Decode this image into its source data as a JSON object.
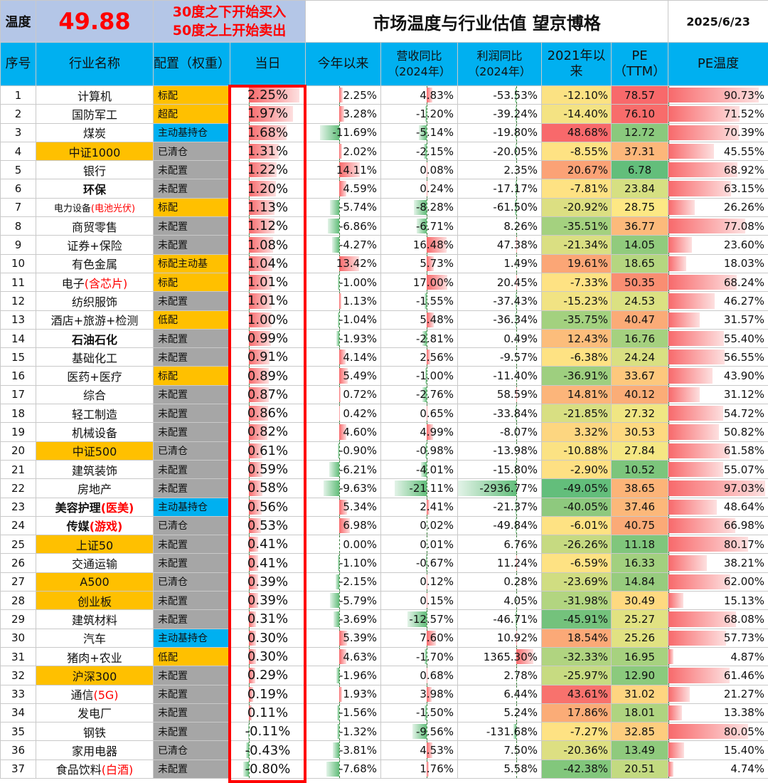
{
  "header": {
    "temp_label": "温度",
    "temp_value": "49.88",
    "rule_line1": "30度之下开始买入",
    "rule_line2": "50度之上开始卖出",
    "title": "市场温度与行业估值 望京博格",
    "date": "2025/6/23"
  },
  "columns": [
    "序号",
    "行业名称",
    "配置（权重）",
    "当日",
    "今年以来",
    "营收同比（2024年）",
    "利润同比（2024年）",
    "2021年以来",
    "PE（TTM）",
    "PE温度"
  ],
  "colors": {
    "gold": "#ffc000",
    "blue": "#00b0f0",
    "gray": "#a6a6a6",
    "bar_pos": "#f8696b",
    "bar_neg": "#63be7b",
    "frame": "#ff0000"
  },
  "rows": [
    {
      "idx": "1",
      "name": "计算机",
      "name_suffix": "",
      "gold": false,
      "bold": false,
      "alloc": "标配",
      "alloc_color": "gold",
      "today": 2.25,
      "ytd": 2.25,
      "rev": 4.83,
      "profit": -53.53,
      "since2021": -12.1,
      "since_color": "#fbe283",
      "pe": "78.57",
      "pe_color": "#f8696b",
      "pe_temp": 90.73
    },
    {
      "idx": "2",
      "name": "国防军工",
      "name_suffix": "",
      "gold": false,
      "bold": false,
      "alloc": "超配",
      "alloc_color": "gold",
      "today": 1.97,
      "ytd": 3.28,
      "rev": -1.2,
      "profit": -39.24,
      "since2021": -14.4,
      "since_color": "#f4e383",
      "pe": "76.10",
      "pe_color": "#f86c6b",
      "pe_temp": 71.52
    },
    {
      "idx": "3",
      "name": "煤炭",
      "name_suffix": "",
      "gold": false,
      "bold": false,
      "alloc": "主动基持仓",
      "alloc_color": "blue",
      "today": 1.68,
      "ytd": -11.69,
      "rev": -5.14,
      "profit": -19.8,
      "since2021": 48.68,
      "since_color": "#f8696b",
      "pe": "12.72",
      "pe_color": "#8ac97d",
      "pe_temp": 70.39
    },
    {
      "idx": "4",
      "name": "中证1000",
      "name_suffix": "",
      "gold": true,
      "bold": false,
      "alloc": "已清仓",
      "alloc_color": "gray",
      "today": 1.31,
      "ytd": 2.02,
      "rev": -2.15,
      "profit": -20.05,
      "since2021": -8.55,
      "since_color": "#fee283",
      "pe": "37.31",
      "pe_color": "#fcb77a",
      "pe_temp": 45.55
    },
    {
      "idx": "5",
      "name": "银行",
      "name_suffix": "",
      "gold": false,
      "bold": false,
      "alloc": "未配置",
      "alloc_color": "gray",
      "today": 1.22,
      "ytd": 14.11,
      "rev": 0.08,
      "profit": 2.35,
      "since2021": 20.67,
      "since_color": "#fba276",
      "pe": "6.78",
      "pe_color": "#63be7b",
      "pe_temp": 68.92
    },
    {
      "idx": "6",
      "name": "环保",
      "name_suffix": "",
      "gold": false,
      "bold": true,
      "alloc": "未配置",
      "alloc_color": "gray",
      "today": 1.2,
      "ytd": 4.59,
      "rev": 0.24,
      "profit": -17.17,
      "since2021": -7.81,
      "since_color": "#fee283",
      "pe": "23.84",
      "pe_color": "#d6e082",
      "pe_temp": 63.15
    },
    {
      "idx": "7",
      "name": "电力设备",
      "name_suffix": "(电池光伏)",
      "gold": false,
      "bold": false,
      "alloc": "标配",
      "alloc_color": "gold",
      "today": 1.13,
      "ytd": -5.74,
      "rev": -8.28,
      "profit": -61.5,
      "since2021": -20.92,
      "since_color": "#dcdf82",
      "pe": "28.75",
      "pe_color": "#fde884",
      "pe_temp": 26.26
    },
    {
      "idx": "8",
      "name": "商贸零售",
      "name_suffix": "",
      "gold": false,
      "bold": false,
      "alloc": "未配置",
      "alloc_color": "gray",
      "today": 1.12,
      "ytd": -6.86,
      "rev": -6.71,
      "profit": 8.26,
      "since2021": -35.51,
      "since_color": "#a4d17f",
      "pe": "36.77",
      "pe_color": "#fcba7b",
      "pe_temp": 77.08
    },
    {
      "idx": "9",
      "name": "证券+保险",
      "name_suffix": "",
      "gold": false,
      "bold": false,
      "alloc": "未配置",
      "alloc_color": "gray",
      "today": 1.08,
      "ytd": -4.27,
      "rev": 16.48,
      "profit": 47.38,
      "since2021": -21.34,
      "since_color": "#dadf82",
      "pe": "14.05",
      "pe_color": "#91cb7d",
      "pe_temp": 23.6
    },
    {
      "idx": "10",
      "name": "有色金属",
      "name_suffix": "",
      "gold": false,
      "bold": false,
      "alloc": "标配主动基",
      "alloc_color": "gold",
      "today": 1.04,
      "ytd": 13.42,
      "rev": 5.73,
      "profit": 1.49,
      "since2021": 19.61,
      "since_color": "#fba676",
      "pe": "18.65",
      "pe_color": "#b5d680",
      "pe_temp": 18.03
    },
    {
      "idx": "11",
      "name": "电子",
      "name_suffix": "(含芯片)",
      "gold": false,
      "bold": false,
      "alloc": "标配",
      "alloc_color": "gold",
      "today": 1.01,
      "ytd": -1.0,
      "rev": 17.0,
      "profit": 20.45,
      "since2021": -7.33,
      "since_color": "#fee283",
      "pe": "50.35",
      "pe_color": "#f98e72",
      "pe_temp": 68.24
    },
    {
      "idx": "12",
      "name": "纺织服饰",
      "name_suffix": "",
      "gold": false,
      "bold": false,
      "alloc": "未配置",
      "alloc_color": "gray",
      "today": 1.01,
      "ytd": 1.13,
      "rev": -1.55,
      "profit": -37.43,
      "since2021": -15.23,
      "since_color": "#f1e383",
      "pe": "24.53",
      "pe_color": "#dbe182",
      "pe_temp": 46.27
    },
    {
      "idx": "13",
      "name": "酒店+旅游+检测",
      "name_suffix": "",
      "gold": false,
      "bold": false,
      "alloc": "低配",
      "alloc_color": "gold",
      "today": 1.0,
      "ytd": -1.04,
      "rev": 5.48,
      "profit": -36.34,
      "since2021": -35.75,
      "since_color": "#a3d17f",
      "pe": "40.47",
      "pe_color": "#fbab77",
      "pe_temp": 31.57
    },
    {
      "idx": "14",
      "name": "石油石化",
      "name_suffix": "",
      "gold": false,
      "bold": true,
      "alloc": "未配置",
      "alloc_color": "gray",
      "today": 0.99,
      "ytd": -1.93,
      "rev": -2.81,
      "profit": 0.49,
      "since2021": 12.43,
      "since_color": "#fcbd7b",
      "pe": "16.76",
      "pe_color": "#a5d17f",
      "pe_temp": 55.4
    },
    {
      "idx": "15",
      "name": "基础化工",
      "name_suffix": "",
      "gold": false,
      "bold": false,
      "alloc": "未配置",
      "alloc_color": "gray",
      "today": 0.91,
      "ytd": 4.14,
      "rev": 2.56,
      "profit": -9.57,
      "since2021": -6.38,
      "since_color": "#fee283",
      "pe": "24.24",
      "pe_color": "#d9e082",
      "pe_temp": 56.55
    },
    {
      "idx": "16",
      "name": "医药+医疗",
      "name_suffix": "",
      "gold": false,
      "bold": false,
      "alloc": "标配",
      "alloc_color": "gold",
      "today": 0.89,
      "ytd": 5.49,
      "rev": -1.0,
      "profit": -11.4,
      "since2021": -36.91,
      "since_color": "#9ecf7f",
      "pe": "33.67",
      "pe_color": "#fdc87d",
      "pe_temp": 43.9
    },
    {
      "idx": "17",
      "name": "综合",
      "name_suffix": "",
      "gold": false,
      "bold": false,
      "alloc": "未配置",
      "alloc_color": "gray",
      "today": 0.87,
      "ytd": 0.72,
      "rev": -2.76,
      "profit": 58.59,
      "since2021": 14.81,
      "since_color": "#fcb57a",
      "pe": "40.12",
      "pe_color": "#fbad77",
      "pe_temp": 31.12
    },
    {
      "idx": "18",
      "name": "轻工制造",
      "name_suffix": "",
      "gold": false,
      "bold": false,
      "alloc": "未配置",
      "alloc_color": "gray",
      "today": 0.86,
      "ytd": 0.42,
      "rev": 0.65,
      "profit": -33.84,
      "since2021": -21.85,
      "since_color": "#d8df82",
      "pe": "27.32",
      "pe_color": "#f0e683",
      "pe_temp": 54.72
    },
    {
      "idx": "19",
      "name": "机械设备",
      "name_suffix": "",
      "gold": false,
      "bold": false,
      "alloc": "未配置",
      "alloc_color": "gray",
      "today": 0.82,
      "ytd": 4.6,
      "rev": 4.99,
      "profit": -8.07,
      "since2021": 3.32,
      "since_color": "#fdd680",
      "pe": "30.53",
      "pe_color": "#fed980",
      "pe_temp": 50.82
    },
    {
      "idx": "20",
      "name": "中证500",
      "name_suffix": "",
      "gold": true,
      "bold": false,
      "alloc": "已清仓",
      "alloc_color": "gray",
      "today": 0.61,
      "ytd": -0.9,
      "rev": -0.98,
      "profit": -13.98,
      "since2021": -10.88,
      "since_color": "#fbe283",
      "pe": "27.84",
      "pe_color": "#f5e783",
      "pe_temp": 61.58
    },
    {
      "idx": "21",
      "name": "建筑装饰",
      "name_suffix": "",
      "gold": false,
      "bold": false,
      "alloc": "未配置",
      "alloc_color": "gray",
      "today": 0.59,
      "ytd": -6.21,
      "rev": -4.01,
      "profit": -15.8,
      "since2021": -2.9,
      "since_color": "#fee083",
      "pe": "10.52",
      "pe_color": "#7cc57c",
      "pe_temp": 55.07
    },
    {
      "idx": "22",
      "name": "房地产",
      "name_suffix": "",
      "gold": false,
      "bold": false,
      "alloc": "未配置",
      "alloc_color": "gray",
      "today": 0.58,
      "ytd": -9.63,
      "rev": -21.11,
      "profit": -2936.77,
      "since2021": -49.05,
      "since_color": "#63be7b",
      "pe": "38.65",
      "pe_color": "#fcb478",
      "pe_temp": 97.03
    },
    {
      "idx": "23",
      "name": "美容护理",
      "name_suffix": "(医美)",
      "gold": false,
      "bold": true,
      "alloc": "主动基持仓",
      "alloc_color": "blue",
      "today": 0.56,
      "ytd": 5.34,
      "rev": 2.41,
      "profit": -21.37,
      "since2021": -40.05,
      "since_color": "#8ec97e",
      "pe": "37.46",
      "pe_color": "#fcb87a",
      "pe_temp": 48.64
    },
    {
      "idx": "24",
      "name": "传媒",
      "name_suffix": "(游戏)",
      "gold": false,
      "bold": true,
      "alloc": "已清仓",
      "alloc_color": "gray",
      "today": 0.53,
      "ytd": 6.98,
      "rev": 0.02,
      "profit": -49.84,
      "since2021": -6.01,
      "since_color": "#fee283",
      "pe": "40.75",
      "pe_color": "#fbaa77",
      "pe_temp": 66.98
    },
    {
      "idx": "25",
      "name": "上证50",
      "name_suffix": "",
      "gold": true,
      "bold": false,
      "alloc": "未配置",
      "alloc_color": "gray",
      "today": 0.41,
      "ytd": 0.0,
      "rev": 0.01,
      "profit": 6.76,
      "since2021": -26.26,
      "since_color": "#c6da81",
      "pe": "11.18",
      "pe_color": "#80c67c",
      "pe_temp": 80.17
    },
    {
      "idx": "26",
      "name": "交通运输",
      "name_suffix": "",
      "gold": false,
      "bold": false,
      "alloc": "未配置",
      "alloc_color": "gray",
      "today": 0.41,
      "ytd": -1.1,
      "rev": -0.67,
      "profit": 11.24,
      "since2021": -6.59,
      "since_color": "#fee283",
      "pe": "16.33",
      "pe_color": "#a2d07f",
      "pe_temp": 38.21
    },
    {
      "idx": "27",
      "name": "A500",
      "name_suffix": "",
      "gold": true,
      "bold": false,
      "alloc": "已清仓",
      "alloc_color": "gray",
      "today": 0.39,
      "ytd": -2.15,
      "rev": 0.12,
      "profit": 0.28,
      "since2021": -23.69,
      "since_color": "#d0dd81",
      "pe": "14.84",
      "pe_color": "#97cc7e",
      "pe_temp": 62.0
    },
    {
      "idx": "28",
      "name": "创业板",
      "name_suffix": "",
      "gold": true,
      "bold": false,
      "alloc": "未配置",
      "alloc_color": "gray",
      "today": 0.39,
      "ytd": -5.79,
      "rev": 0.15,
      "profit": 4.05,
      "since2021": -31.98,
      "since_color": "#b2d580",
      "pe": "30.49",
      "pe_color": "#fed980",
      "pe_temp": 15.13
    },
    {
      "idx": "29",
      "name": "建筑材料",
      "name_suffix": "",
      "gold": false,
      "bold": false,
      "alloc": "未配置",
      "alloc_color": "gray",
      "today": 0.31,
      "ytd": -3.69,
      "rev": -12.57,
      "profit": -46.71,
      "since2021": -45.91,
      "since_color": "#74c27c",
      "pe": "25.27",
      "pe_color": "#e1e282",
      "pe_temp": 68.08
    },
    {
      "idx": "30",
      "name": "汽车",
      "name_suffix": "",
      "gold": false,
      "bold": false,
      "alloc": "主动基持仓",
      "alloc_color": "blue",
      "today": 0.3,
      "ytd": 5.39,
      "rev": 7.6,
      "profit": 10.92,
      "since2021": 18.54,
      "since_color": "#fba977",
      "pe": "25.26",
      "pe_color": "#e1e282",
      "pe_temp": 57.73
    },
    {
      "idx": "31",
      "name": "猪肉+农业",
      "name_suffix": "",
      "gold": false,
      "bold": false,
      "alloc": "低配",
      "alloc_color": "gold",
      "today": 0.3,
      "ytd": 4.63,
      "rev": -1.7,
      "profit": 1365.3,
      "since2021": -32.33,
      "since_color": "#b0d480",
      "pe": "16.95",
      "pe_color": "#a7d27f",
      "pe_temp": 4.87
    },
    {
      "idx": "32",
      "name": "沪深300",
      "name_suffix": "",
      "gold": true,
      "bold": false,
      "alloc": "未配置",
      "alloc_color": "gray",
      "today": 0.29,
      "ytd": -1.96,
      "rev": 0.68,
      "profit": 2.78,
      "since2021": -25.97,
      "since_color": "#c7db81",
      "pe": "12.90",
      "pe_color": "#8bca7d",
      "pe_temp": 61.46
    },
    {
      "idx": "33",
      "name": "通信",
      "name_suffix": "(5G)",
      "gold": false,
      "bold": false,
      "alloc": "未配置",
      "alloc_color": "gray",
      "today": 0.19,
      "ytd": 1.93,
      "rev": 3.98,
      "profit": 6.44,
      "since2021": 43.61,
      "since_color": "#f8726d",
      "pe": "31.02",
      "pe_color": "#fed580",
      "pe_temp": 21.27
    },
    {
      "idx": "34",
      "name": "发电厂",
      "name_suffix": "",
      "gold": false,
      "bold": false,
      "alloc": "未配置",
      "alloc_color": "gray",
      "today": 0.11,
      "ytd": -1.56,
      "rev": -1.5,
      "profit": 5.24,
      "since2021": 17.86,
      "since_color": "#fbac77",
      "pe": "18.01",
      "pe_color": "#afd480",
      "pe_temp": 13.38
    },
    {
      "idx": "35",
      "name": "钢铁",
      "name_suffix": "",
      "gold": false,
      "bold": false,
      "alloc": "未配置",
      "alloc_color": "gray",
      "today": -0.11,
      "ytd": -1.32,
      "rev": -9.56,
      "profit": -131.68,
      "since2021": -7.27,
      "since_color": "#fee283",
      "pe": "32.85",
      "pe_color": "#fdcd7e",
      "pe_temp": 80.05
    },
    {
      "idx": "36",
      "name": "家用电器",
      "name_suffix": "",
      "gold": false,
      "bold": false,
      "alloc": "已清仓",
      "alloc_color": "gray",
      "today": -0.43,
      "ytd": -3.81,
      "rev": 4.53,
      "profit": 7.5,
      "since2021": -20.36,
      "since_color": "#dddf82",
      "pe": "13.49",
      "pe_color": "#8fca7d",
      "pe_temp": 15.4
    },
    {
      "idx": "37",
      "name": "食品饮料",
      "name_suffix": "(白酒)",
      "gold": false,
      "bold": false,
      "alloc": "未配置",
      "alloc_color": "gray",
      "today": -0.8,
      "ytd": -7.68,
      "rev": 1.76,
      "profit": 5.58,
      "since2021": -42.38,
      "since_color": "#82c77c",
      "pe": "20.51",
      "pe_color": "#c3da81",
      "pe_temp": 4.74
    }
  ]
}
